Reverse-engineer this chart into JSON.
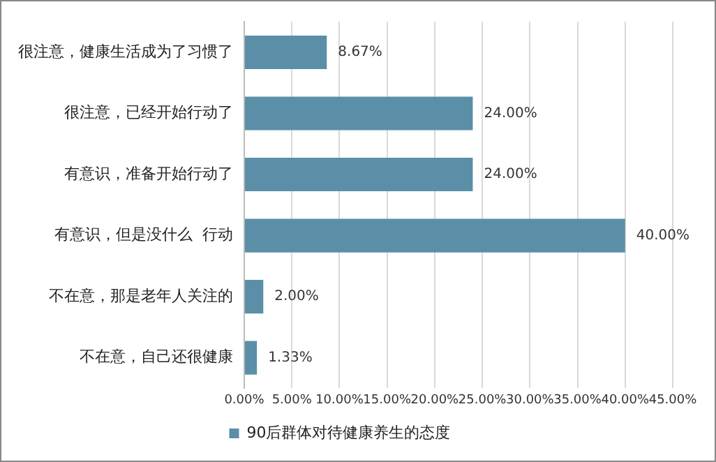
{
  "chart_data": {
    "type": "bar",
    "orientation": "horizontal",
    "categories": [
      "很注意，健康生活成为了习惯了",
      "很注意，已经开始行动了",
      "有意识，准备开始行动了",
      "有意识，但是没什么  行动",
      "不在意，那是老年人关注的",
      "不在意，自己还很健康"
    ],
    "series": [
      {
        "name": "90后群体对待健康养生的态度",
        "color": "#5b8fa8",
        "values": [
          8.67,
          24.0,
          24.0,
          40.0,
          2.0,
          1.33
        ],
        "value_labels": [
          "8.67%",
          "24.00%",
          "24.00%",
          "40.00%",
          "2.00%",
          "1.33%"
        ]
      }
    ],
    "xlim": [
      0,
      45
    ],
    "xticks": [
      {
        "value": 0,
        "label": "0.00%"
      },
      {
        "value": 5,
        "label": "5.00%"
      },
      {
        "value": 10,
        "label": "10.00%"
      },
      {
        "value": 15,
        "label": "15.00%"
      },
      {
        "value": 20,
        "label": "20.00%"
      },
      {
        "value": 25,
        "label": "25.00%"
      },
      {
        "value": 30,
        "label": "30.00%"
      },
      {
        "value": 35,
        "label": "35.00%"
      },
      {
        "value": 40,
        "label": "40.00%"
      },
      {
        "value": 45,
        "label": "45.00%"
      }
    ],
    "grid": "x",
    "legend": "bottom"
  }
}
